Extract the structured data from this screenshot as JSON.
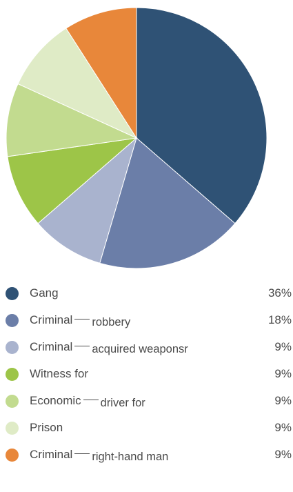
{
  "chart_data": {
    "type": "pie",
    "title": "",
    "slices": [
      {
        "label": "Gang",
        "sublabel": "",
        "value": 36,
        "display": "36%",
        "color": "#2f5275"
      },
      {
        "label": "Criminal",
        "sublabel": "robbery",
        "value": 18,
        "display": "18%",
        "color": "#6b7ea8"
      },
      {
        "label": "Criminal",
        "sublabel": "acquired weaponsr",
        "value": 9,
        "display": "9%",
        "color": "#a9b3ce"
      },
      {
        "label": "Witness for",
        "sublabel": "",
        "value": 9,
        "display": "9%",
        "color": "#9dc548"
      },
      {
        "label": "Economic",
        "sublabel": "driver for",
        "value": 9,
        "display": "9%",
        "color": "#c2db8f"
      },
      {
        "label": "Prison",
        "sublabel": "",
        "value": 9,
        "display": "9%",
        "color": "#dfebc6"
      },
      {
        "label": "Criminal",
        "sublabel": "right-hand man",
        "value": 9,
        "display": "9%",
        "color": "#e8873a"
      }
    ],
    "start_angle_deg": 0,
    "direction": "clockwise",
    "legend_position": "bottom"
  }
}
